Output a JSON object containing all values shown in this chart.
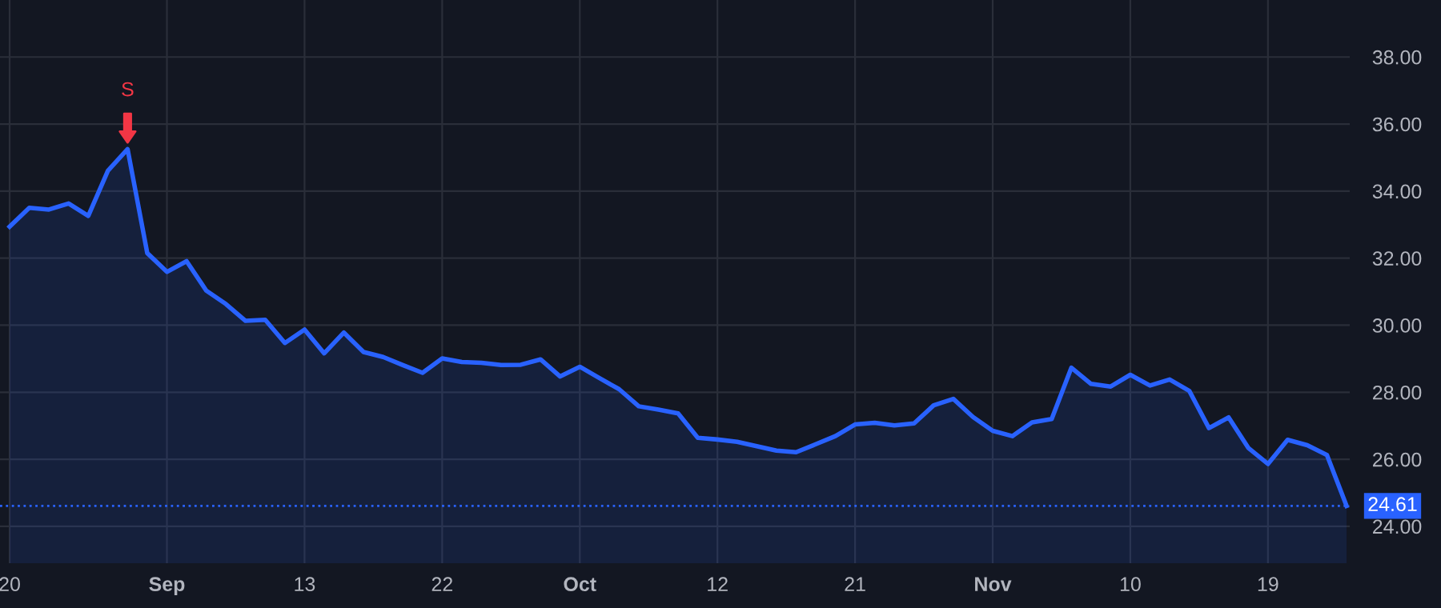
{
  "chart_data": {
    "type": "area",
    "categories": [
      "20",
      null,
      null,
      null,
      null,
      null,
      null,
      null,
      "Sep",
      null,
      null,
      null,
      null,
      null,
      null,
      "13",
      null,
      null,
      null,
      null,
      null,
      null,
      "22",
      null,
      null,
      null,
      null,
      null,
      null,
      "Oct",
      null,
      null,
      null,
      null,
      null,
      null,
      "12",
      null,
      null,
      null,
      null,
      null,
      null,
      "21",
      null,
      null,
      null,
      null,
      null,
      null,
      "Nov",
      null,
      null,
      null,
      null,
      null,
      null,
      "10",
      null,
      null,
      null,
      null,
      null,
      null,
      "19",
      null,
      null,
      null,
      null
    ],
    "series": [
      {
        "color": "#2962ff",
        "values": [
          32.94,
          33.5,
          33.45,
          33.63,
          33.26,
          34.61,
          35.25,
          32.15,
          31.59,
          31.91,
          31.03,
          30.63,
          30.13,
          30.16,
          29.47,
          29.87,
          29.16,
          29.78,
          29.2,
          29.05,
          28.81,
          28.58,
          29.01,
          28.9,
          28.88,
          28.81,
          28.82,
          28.98,
          28.47,
          28.76,
          28.42,
          28.09,
          27.58,
          27.48,
          27.37,
          26.64,
          26.59,
          26.52,
          26.39,
          26.26,
          26.21,
          26.45,
          26.69,
          27.04,
          27.09,
          27.01,
          27.07,
          27.61,
          27.8,
          27.26,
          26.85,
          26.69,
          27.1,
          27.2,
          28.73,
          28.25,
          28.17,
          28.52,
          28.2,
          28.38,
          28.04,
          26.93,
          27.25,
          26.34,
          25.86,
          26.58,
          26.42,
          26.13,
          24.61
        ]
      }
    ],
    "ylim": [
      22.9,
      39.7
    ],
    "yticks": [
      {
        "value": 24,
        "label": "24.00"
      },
      {
        "value": 26,
        "label": "26.00"
      },
      {
        "value": 28,
        "label": "28.00"
      },
      {
        "value": 30,
        "label": "30.00"
      },
      {
        "value": 32,
        "label": "32.00"
      },
      {
        "value": 34,
        "label": "34.00"
      },
      {
        "value": 36,
        "label": "36.00"
      },
      {
        "value": 38,
        "label": "38.00"
      }
    ],
    "ref_lines": [
      {
        "axis": "y",
        "value": 24.61,
        "label": "24.61",
        "color": "#2962ff",
        "line_style": "dotted"
      }
    ],
    "annotations": [
      {
        "text": "S",
        "y": 35.25
      }
    ],
    "grid": true,
    "marker": "none",
    "line_style": "solid"
  }
}
